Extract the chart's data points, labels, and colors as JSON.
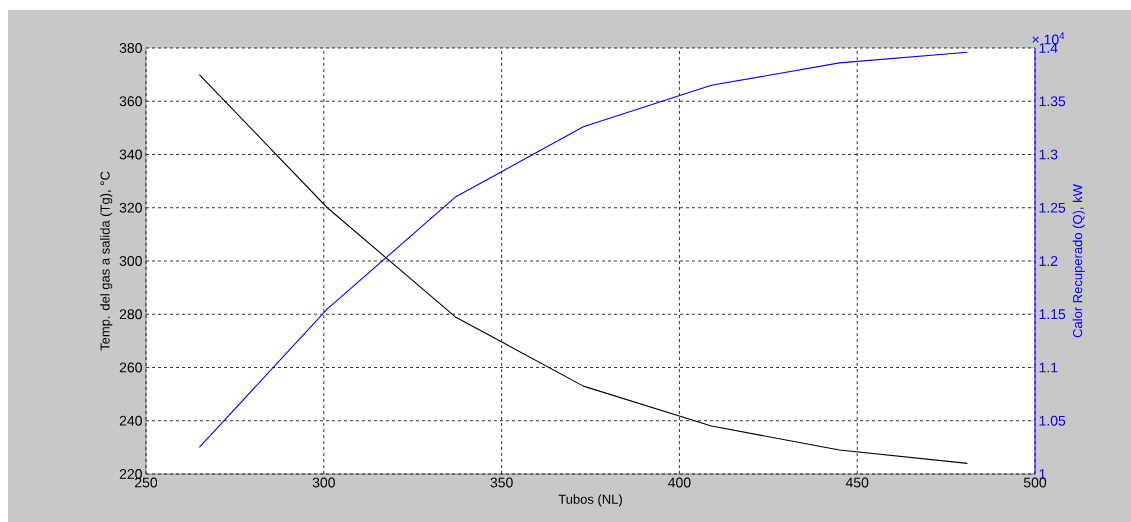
{
  "chart_data": {
    "type": "line",
    "xlabel": "Tubos (NL)",
    "ylabel": "Temp. del gas a salida (Tg), °C",
    "y2label": "Calor Recuperado (Q), kW",
    "annotations": [
      "× 10$^{4}$"
    ],
    "x": [
      265,
      301,
      337,
      373,
      409,
      445,
      481
    ],
    "xlim": [
      250,
      500
    ],
    "xticks": [
      250,
      300,
      350,
      400,
      450,
      500
    ],
    "ylim": [
      220,
      380
    ],
    "yticks": [
      220,
      240,
      260,
      280,
      300,
      320,
      340,
      360,
      380
    ],
    "y2lim": [
      1,
      1.4
    ],
    "y2ticks": [
      1,
      1.05,
      1.1,
      1.15,
      1.2,
      1.25,
      1.3,
      1.35,
      1.4
    ],
    "grid": true,
    "series": [
      {
        "color": "#000000",
        "values": [
          370,
          320,
          279,
          253,
          238,
          229,
          224
        ]
      },
      {
        "color": "#0000ff",
        "axis": "y2",
        "values": [
          1.025,
          1.155,
          1.26,
          1.326,
          1.365,
          1.386,
          1.396
        ]
      }
    ]
  }
}
